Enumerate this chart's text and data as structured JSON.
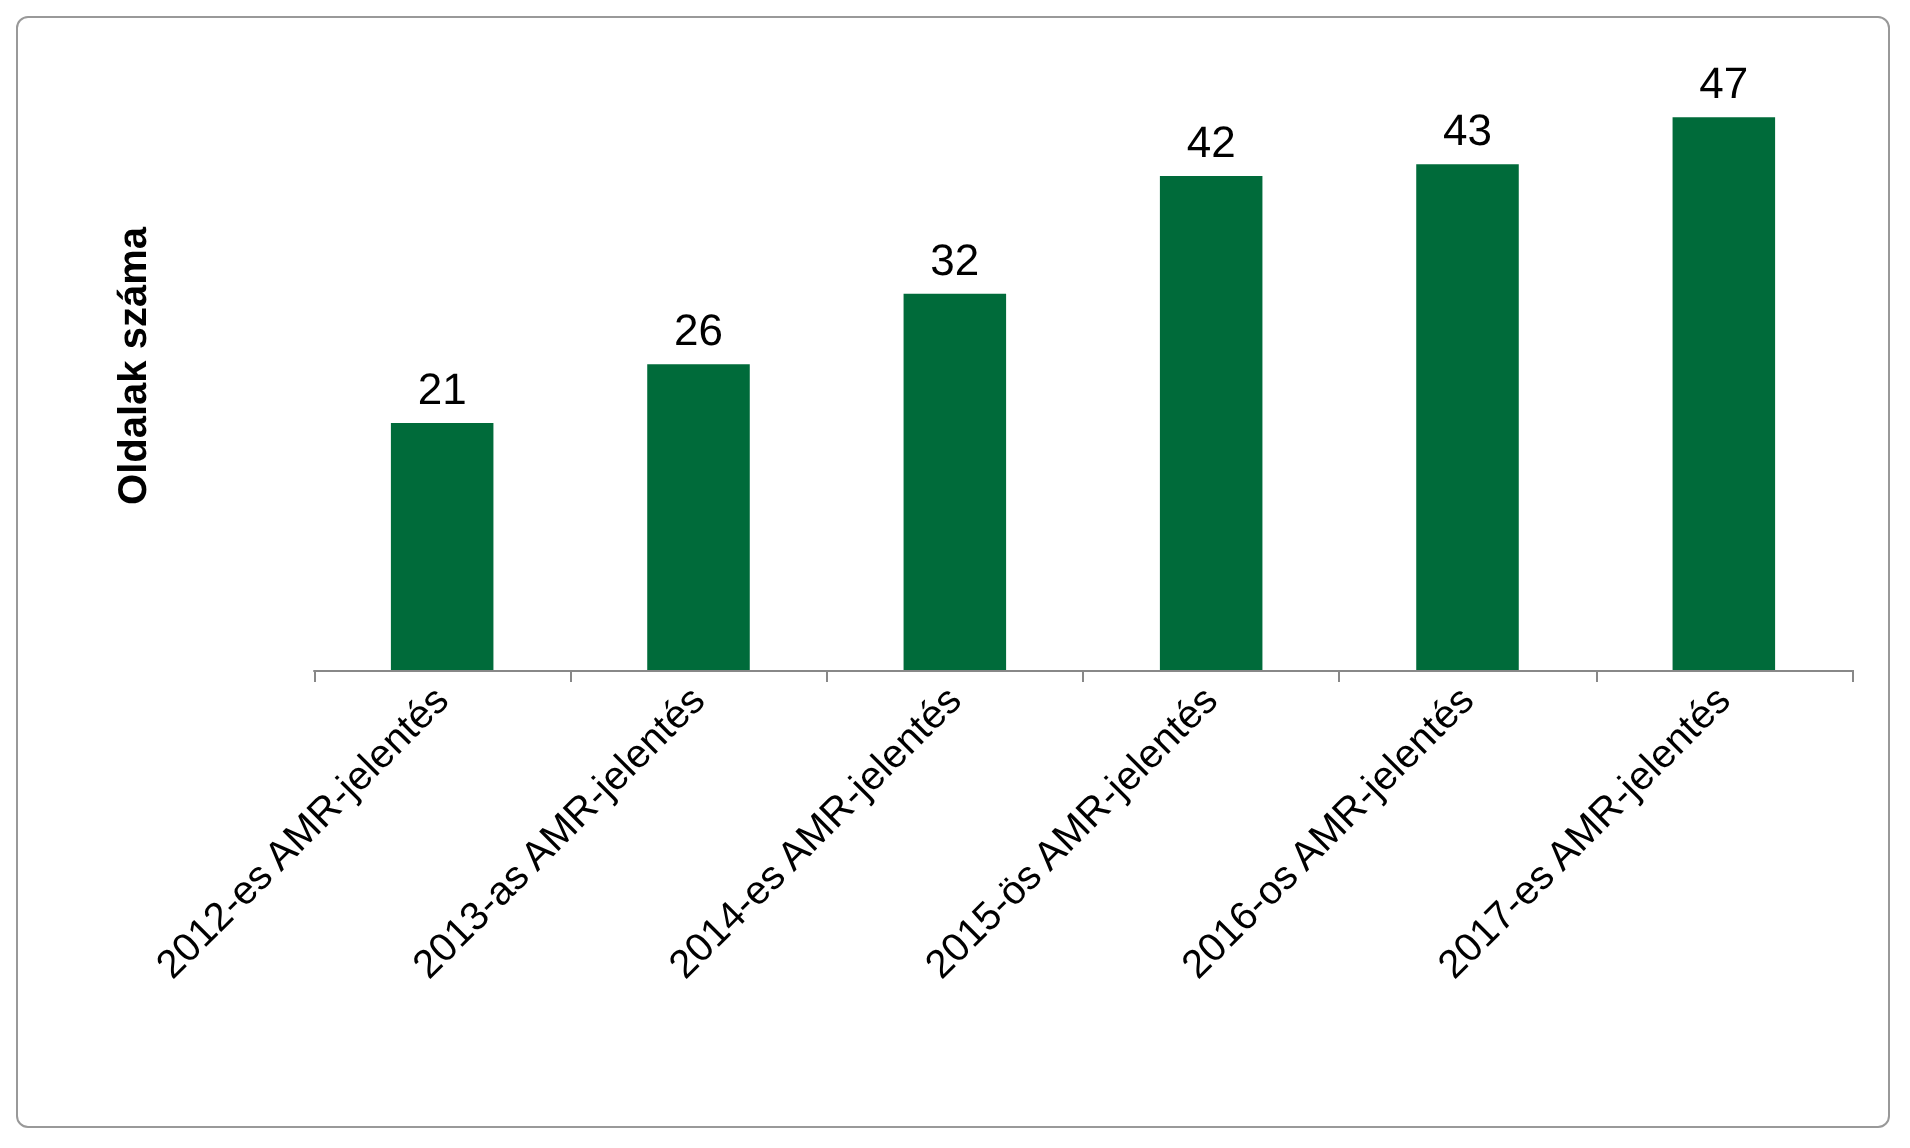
{
  "chart_data": {
    "type": "bar",
    "ylabel": "Oldalak száma",
    "categories": [
      "2012-es AMR-jelentés",
      "2013-as AMR-jelentés",
      "2014-es AMR-jelentés",
      "2015-ös AMR-jelentés",
      "2016-os AMR-jelentés",
      "2017-es AMR-jelentés"
    ],
    "values": [
      21,
      26,
      32,
      42,
      43,
      47
    ],
    "color": "#006b3a",
    "data_labels": true
  }
}
